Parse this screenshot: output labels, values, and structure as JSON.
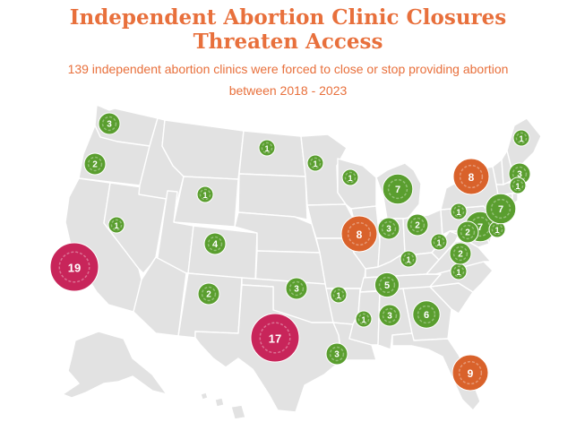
{
  "title_line1": "Independent Abortion Clinic Closures",
  "title_line2": "Threaten Access",
  "subtitle_line1": "139 independent abortion clinics were forced to close or stop providing abortion",
  "subtitle_line2": "between 2018 - 2023",
  "colors": {
    "small": "#5a9e2f",
    "medium": "#d9622b",
    "large": "#c8255a",
    "land": "#e2e2e2",
    "heading": "#e8703c"
  },
  "closures": [
    {
      "state": "Washington",
      "count": 3
    },
    {
      "state": "Oregon",
      "count": 2
    },
    {
      "state": "California",
      "count": 19
    },
    {
      "state": "Nevada",
      "count": 1
    },
    {
      "state": "Montana",
      "count": 1
    },
    {
      "state": "Colorado",
      "count": 4
    },
    {
      "state": "New Mexico",
      "count": 2
    },
    {
      "state": "Texas",
      "count": 17
    },
    {
      "state": "Oklahoma",
      "count": 3
    },
    {
      "state": "North Dakota",
      "count": 1
    },
    {
      "state": "Minnesota",
      "count": 1
    },
    {
      "state": "Wisconsin",
      "count": 1
    },
    {
      "state": "Michigan",
      "count": 7
    },
    {
      "state": "Illinois",
      "count": 8
    },
    {
      "state": "Indiana",
      "count": 3
    },
    {
      "state": "Ohio",
      "count": 2
    },
    {
      "state": "Kentucky",
      "count": 1
    },
    {
      "state": "Arkansas",
      "count": 1
    },
    {
      "state": "Mississippi",
      "count": 1
    },
    {
      "state": "Louisiana",
      "count": 3
    },
    {
      "state": "Alabama",
      "count": 3
    },
    {
      "state": "Tennessee",
      "count": 5
    },
    {
      "state": "Georgia",
      "count": 6
    },
    {
      "state": "Florida",
      "count": 9
    },
    {
      "state": "South Carolina",
      "count": 1
    },
    {
      "state": "North Carolina",
      "count": 2
    },
    {
      "state": "West Virginia",
      "count": 1
    },
    {
      "state": "Virginia",
      "count": 1
    },
    {
      "state": "Pennsylvania",
      "count": 7
    },
    {
      "state": "Maryland",
      "count": 2
    },
    {
      "state": "Delaware",
      "count": 1
    },
    {
      "state": "New York",
      "count": 8
    },
    {
      "state": "New Jersey",
      "count": 7
    },
    {
      "state": "Massachusetts",
      "count": 3
    },
    {
      "state": "Rhode Island",
      "count": 1
    },
    {
      "state": "Maine",
      "count": 1
    }
  ]
}
